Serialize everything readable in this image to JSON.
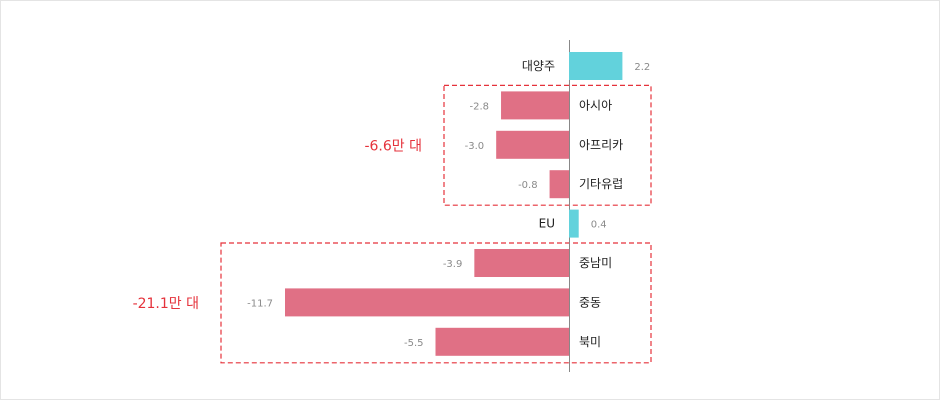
{
  "chart_data": {
    "type": "bar",
    "orientation": "horizontal",
    "categories": [
      "대양주",
      "아시아",
      "아프리카",
      "기타유럽",
      "EU",
      "중남미",
      "중동",
      "북미"
    ],
    "values": [
      2.2,
      -2.8,
      -3.0,
      -0.8,
      0.4,
      -3.9,
      -11.7,
      -5.5
    ],
    "value_labels": [
      "2.2",
      "-2.8",
      "-3.0",
      "-0.8",
      "0.4",
      "-3.9",
      "-11.7",
      "-5.5"
    ],
    "xlim": [
      -11.7,
      2.2
    ],
    "colors": {
      "positive": "#62d2dc",
      "negative": "#e07085",
      "annotation": "#e5323b",
      "axis": "#888888"
    },
    "groups": [
      {
        "label": "-6.6만 대",
        "categories": [
          "아시아",
          "아프리카",
          "기타유럽"
        ]
      },
      {
        "label": "-21.1만 대",
        "categories": [
          "중남미",
          "중동",
          "북미"
        ]
      }
    ]
  }
}
